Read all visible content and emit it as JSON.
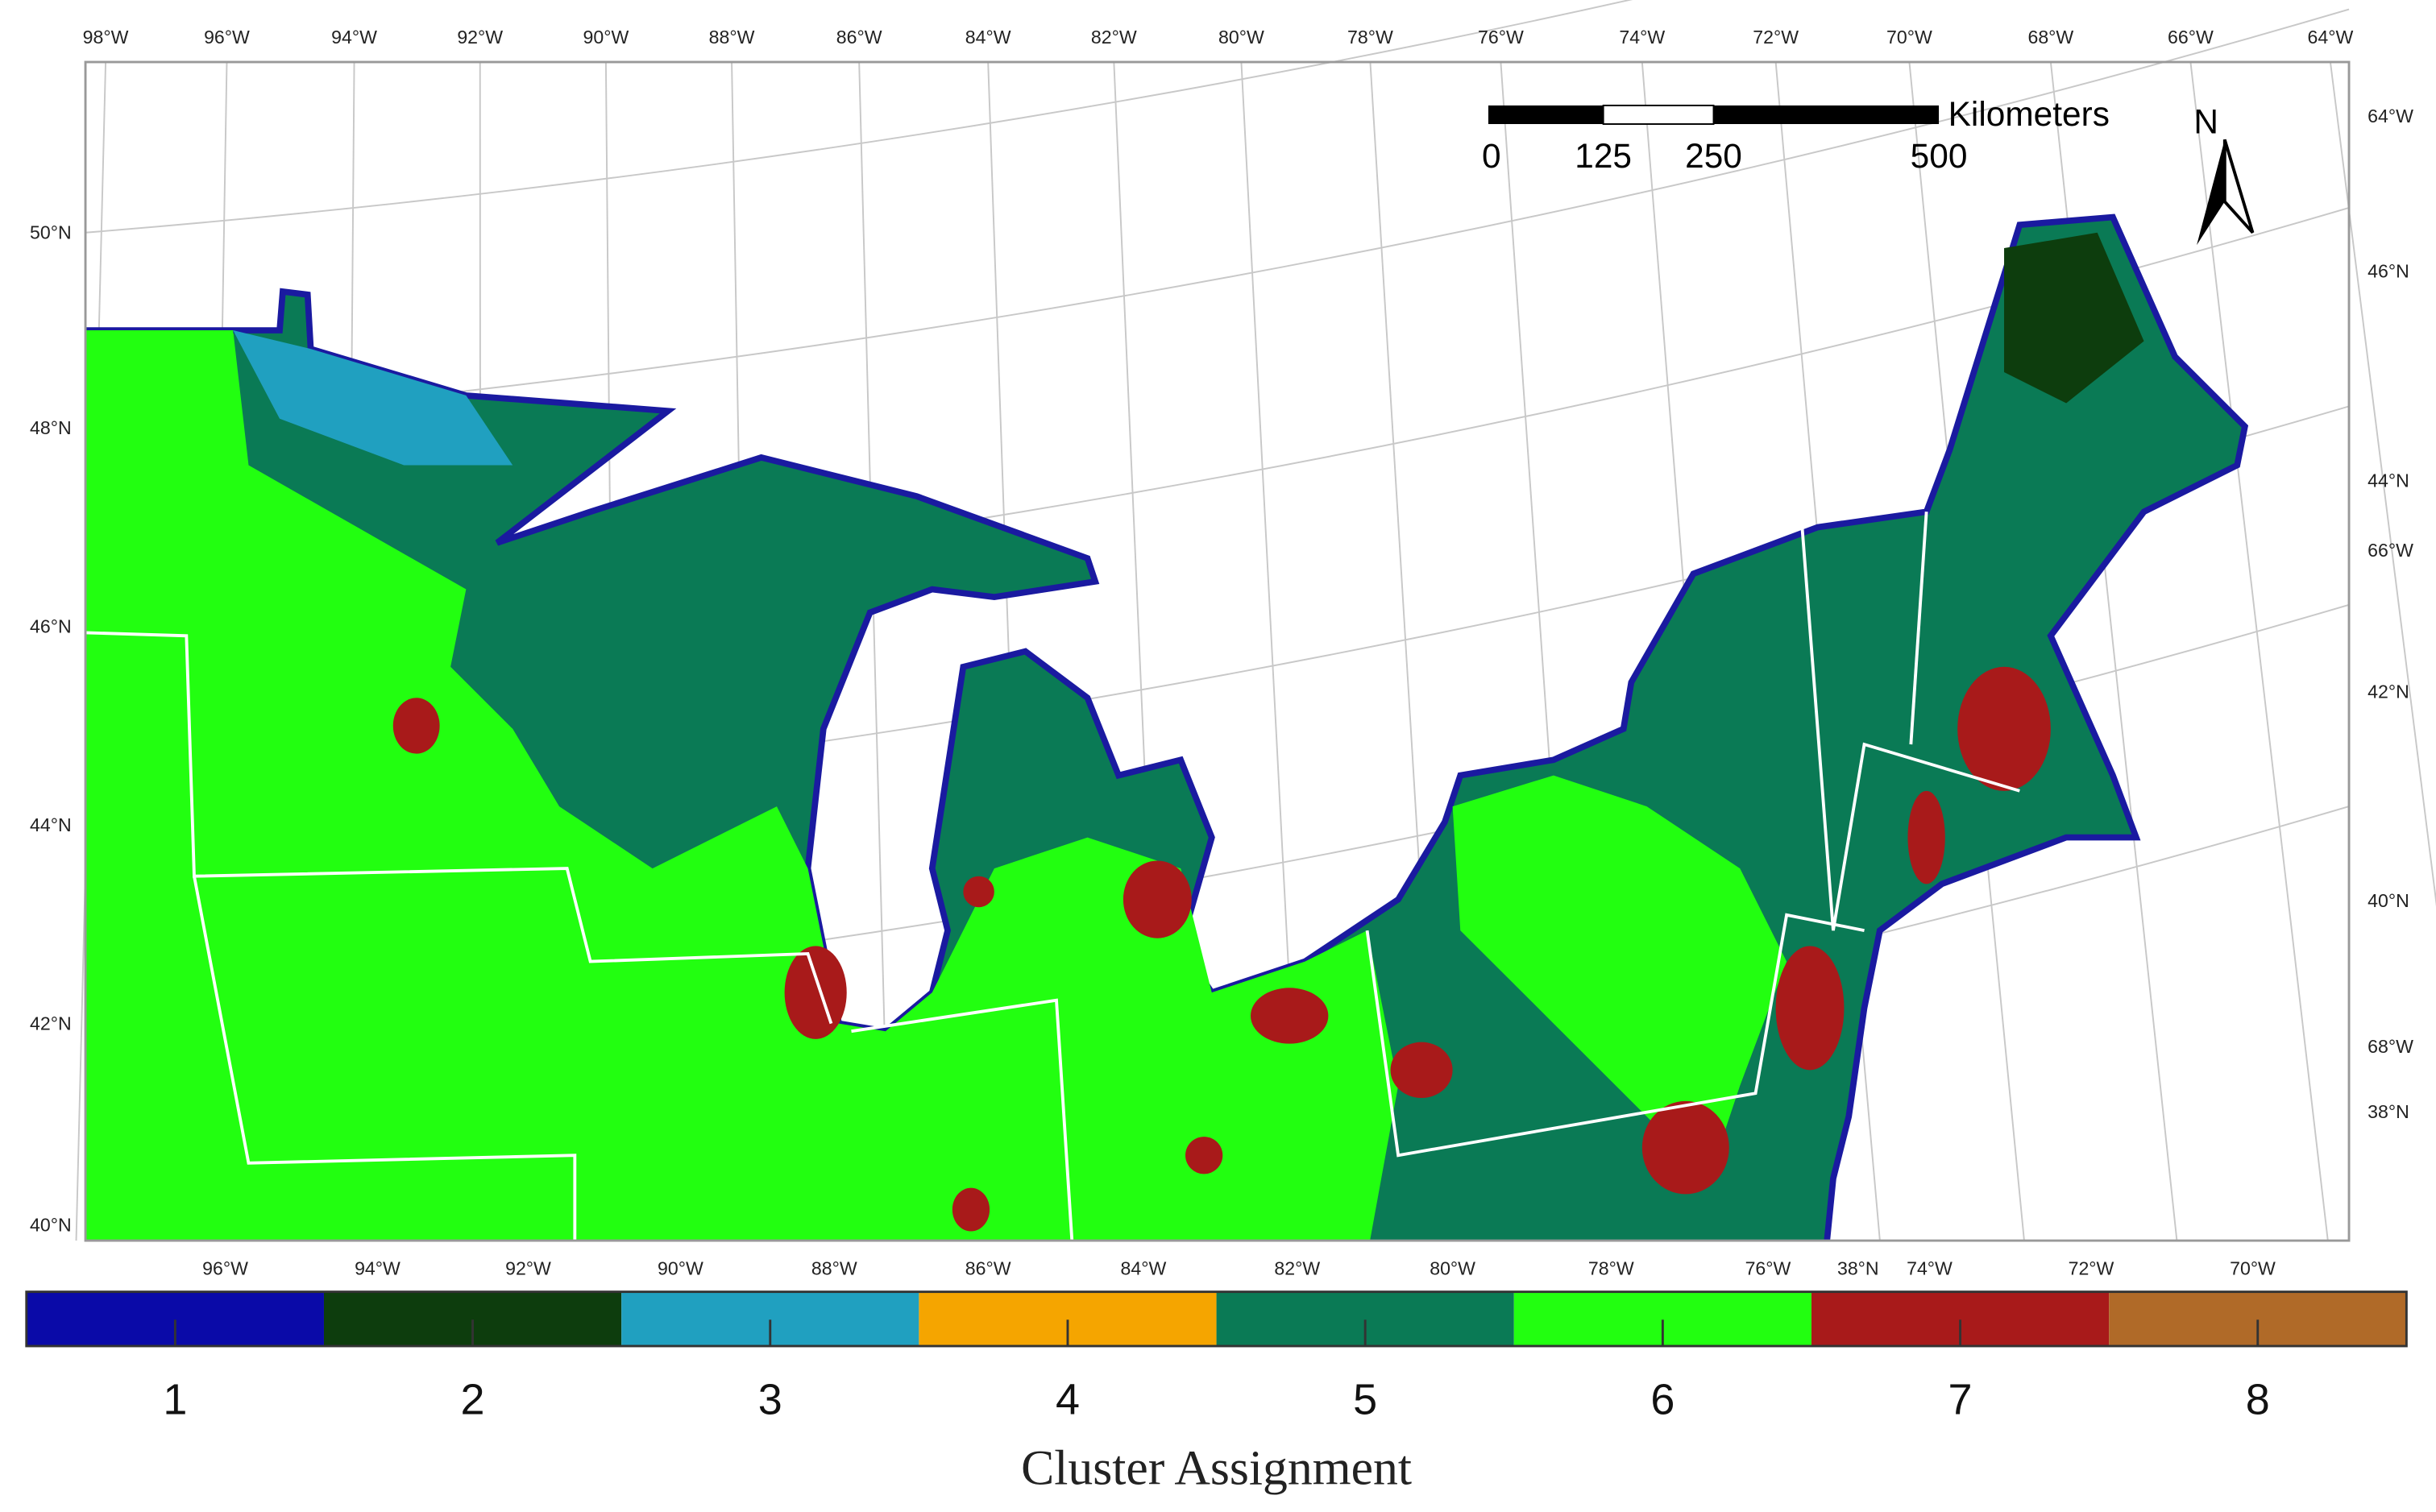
{
  "graticule": {
    "top_labels": [
      "98°W",
      "96°W",
      "94°W",
      "92°W",
      "90°W",
      "88°W",
      "86°W",
      "84°W",
      "82°W",
      "80°W",
      "78°W",
      "76°W",
      "74°W",
      "72°W",
      "70°W",
      "68°W",
      "66°W",
      "64°W"
    ],
    "bottom_labels": [
      "96°W",
      "94°W",
      "92°W",
      "90°W",
      "88°W",
      "86°W",
      "84°W",
      "82°W",
      "80°W",
      "78°W",
      "76°W",
      "38°N",
      "74°W",
      "72°W",
      "70°W"
    ],
    "left_labels": [
      "50°N",
      "48°N",
      "46°N",
      "44°N",
      "42°N",
      "40°N"
    ],
    "right_labels": [
      "64°W",
      "46°N",
      "44°N",
      "66°W",
      "42°N",
      "40°N",
      "68°W",
      "38°N"
    ]
  },
  "scale_bar": {
    "ticks": [
      "0",
      "125",
      "250",
      "500"
    ],
    "unit": "Kilometers"
  },
  "north_arrow": "N",
  "legend": {
    "title": "Cluster Assignment",
    "items": [
      {
        "label": "1",
        "color": "#0a0aa8"
      },
      {
        "label": "2",
        "color": "#0d3d0d"
      },
      {
        "label": "3",
        "color": "#20a0c0"
      },
      {
        "label": "4",
        "color": "#f5a500"
      },
      {
        "label": "5",
        "color": "#0a7a55"
      },
      {
        "label": "6",
        "color": "#22ff10"
      },
      {
        "label": "7",
        "color": "#a81a1a"
      },
      {
        "label": "8",
        "color": "#b06a28"
      }
    ]
  }
}
